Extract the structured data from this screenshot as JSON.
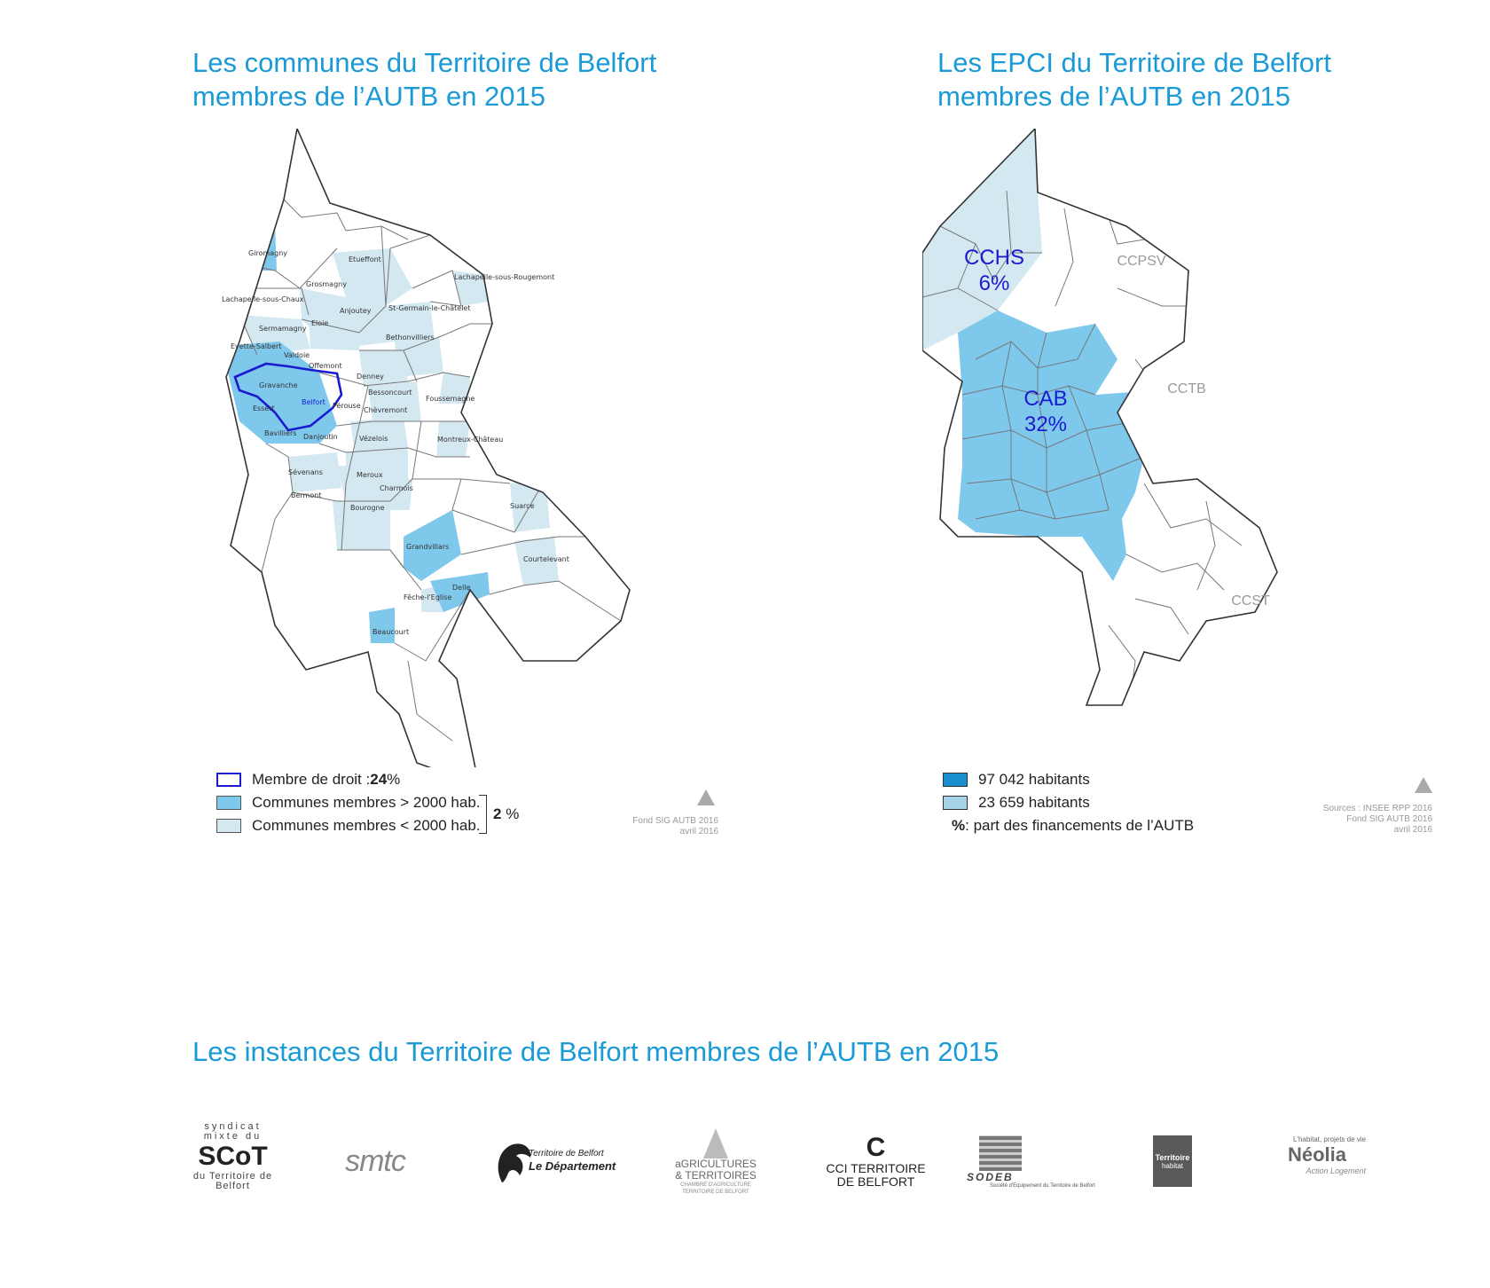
{
  "titles": {
    "left_line1": "Les communes du Territoire de Belfort",
    "left_line2": "membres de l’AUTB en  2015",
    "right_line1": "Les EPCI du Territoire de Belfort",
    "right_line2": "membres de l’AUTB en  2015",
    "bottom": "Les instances du Territoire de Belfort membres de l’AUTB en  2015"
  },
  "colors": {
    "member_large": "#7ec8ec",
    "member_small": "#d4e8f2",
    "belfort_outline": "#1a1ad0",
    "title": "#1a9ad6",
    "cab": "#7ec8ec",
    "cchs": "#d4e8f2"
  },
  "left_map": {
    "communes": [
      "Giromagny",
      "Etueffont",
      "Lachapelle-sous-Rougemont",
      "Grosmagny",
      "Lachapelle-sous-Chaux",
      "Anjoutey",
      "St-Germain-le-Châtelet",
      "Sermamagny",
      "Eloie",
      "Bethonvilliers",
      "Evette-Salbert",
      "Valdoie",
      "Offemont",
      "Denney",
      "Gravanche",
      "Belfort",
      "Bessoncourt",
      "Essert",
      "Pérouse",
      "Chèvremont",
      "Foussemagne",
      "Bavilliers",
      "Danjoutin",
      "Vézelois",
      "Montreux-Château",
      "Sévenans",
      "Meroux",
      "Charmois",
      "Bermont",
      "Bourogne",
      "Suarce",
      "Grandvillars",
      "Courtelevant",
      "Delle",
      "Fêche-l'Eglise",
      "Beaucourt"
    ],
    "legend": {
      "droit_label": "Membre de droit : ",
      "droit_value": "24",
      "droit_unit": " %",
      "large_label": "Communes membres > 2000 hab.",
      "small_label": "Communes membres < 2000 hab.",
      "members_value": "2",
      "members_unit": " %"
    },
    "north": "NORD",
    "source_line1": "Fond SIG AUTB 2016",
    "source_line2": "avril 2016"
  },
  "right_map": {
    "epci": [
      {
        "name": "CCHS",
        "share": "6%"
      },
      {
        "name": "CAB",
        "share": "32%"
      },
      {
        "name": "CCPSV",
        "share": ""
      },
      {
        "name": "CCTB",
        "share": ""
      },
      {
        "name": "CCST",
        "share": ""
      }
    ],
    "legend": {
      "cab_label": "97 042 habitants",
      "cchs_label": "23 659 habitants",
      "pct_symbol": "%",
      "pct_label": " : part des financements de l’AUTB"
    },
    "north": "NORD",
    "source_line1": "Sources : INSEE RPP 2016",
    "source_line2": "Fond SIG AUTB 2016",
    "source_line3": "avril 2016"
  },
  "logos": {
    "scot_top": "syndicat mixte du",
    "scot_main": "SCoT",
    "scot_bottom": "du Territoire de Belfort",
    "smtc": "smtc",
    "dept_line1": "Territoire de Belfort",
    "dept_line2": "Le Département",
    "agri_line1": "aGRICULTURES",
    "agri_line2": "& TERRITOIRES",
    "agri_line3": "CHAMBRE D'AGRICULTURE",
    "agri_line4": "TERRITOIRE DE BELFORT",
    "cci_line1": "CCI TERRITOIRE",
    "cci_line2": "DE BELFORT",
    "sodeb": "SODEB",
    "sodeb_sub": "Société d'Equipement du Territoire de Belfort",
    "th_line1": "Territoire",
    "th_line2": "habitat",
    "neolia_top": "L'habitat, projets de vie",
    "neolia": "Néolia",
    "neolia_sub": "Action Logement"
  }
}
